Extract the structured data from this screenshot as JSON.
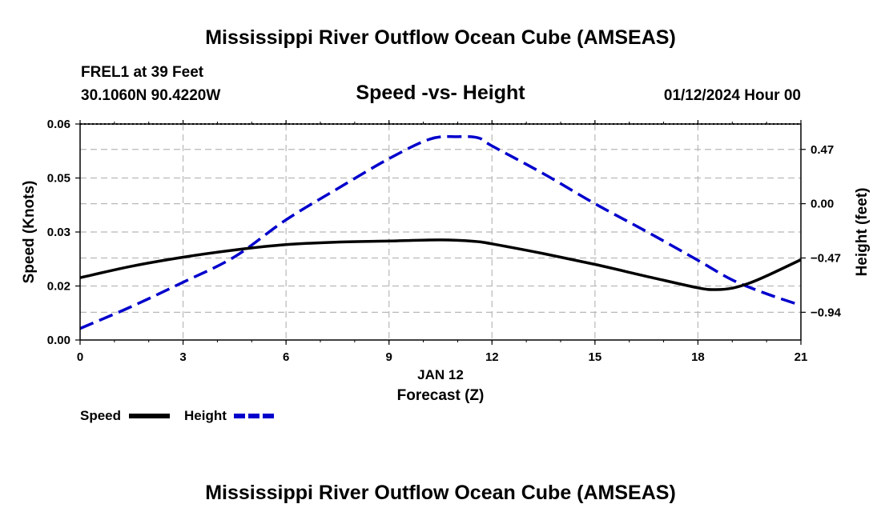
{
  "title": "Mississippi River Outflow Ocean Cube (AMSEAS)",
  "footer_title": "Mississippi River Outflow Ocean Cube (AMSEAS)",
  "station": "FREL1 at 39 Feet",
  "coords": "30.1060N  90.4220W",
  "date_label": "01/12/2024 Hour 00",
  "chart_data": {
    "type": "line",
    "title": "Speed -vs- Height",
    "xlabel": "Forecast (Z)",
    "xlabel_date": "JAN 12",
    "ylabel": "Speed (Knots)",
    "y2label": "Height (feet)",
    "xlim": [
      0,
      21
    ],
    "ylim": [
      0,
      0.06
    ],
    "y2lim": [
      -1.18,
      0.69
    ],
    "x_ticks": [
      "0",
      "3",
      "6",
      "9",
      "12",
      "15",
      "18",
      "21"
    ],
    "y_ticks": [
      "0.00",
      "0.02",
      "0.03",
      "0.05",
      "0.06"
    ],
    "y_tick_values": [
      0,
      0.015,
      0.03,
      0.045,
      0.06
    ],
    "y2_ticks": [
      "0.47",
      "0.00",
      "−0.47",
      "−0.94"
    ],
    "y2_tick_values": [
      0.47,
      0,
      -0.47,
      -0.94
    ],
    "grid": true,
    "series": [
      {
        "name": "Speed",
        "axis": "left",
        "color": "#000000",
        "dash": "solid",
        "x": [
          0,
          1.5,
          3,
          4.5,
          6,
          7.5,
          9,
          10.5,
          11.5,
          12,
          13.5,
          15,
          16.5,
          18,
          18.5,
          19,
          19.5,
          20,
          21
        ],
        "y": [
          0.0173,
          0.0205,
          0.023,
          0.025,
          0.0265,
          0.0272,
          0.0275,
          0.0278,
          0.0274,
          0.0267,
          0.024,
          0.021,
          0.0177,
          0.0145,
          0.014,
          0.0144,
          0.0158,
          0.0178,
          0.0223
        ]
      },
      {
        "name": "Height",
        "axis": "right",
        "color": "#0000cc",
        "dash": "dashed",
        "x": [
          0,
          1.5,
          3,
          4.5,
          6,
          7.5,
          9,
          10.2,
          11,
          11.6,
          12,
          13.5,
          15,
          16.5,
          18,
          19,
          20,
          21
        ],
        "y": [
          -1.08,
          -0.89,
          -0.68,
          -0.46,
          -0.14,
          0.13,
          0.39,
          0.56,
          0.58,
          0.57,
          0.5,
          0.26,
          0.0,
          -0.24,
          -0.49,
          -0.66,
          -0.78,
          -0.88
        ]
      }
    ],
    "legend": [
      {
        "label": "Speed",
        "color": "#000000",
        "dash": "solid"
      },
      {
        "label": "Height",
        "color": "#0000cc",
        "dash": "dashed"
      }
    ]
  }
}
